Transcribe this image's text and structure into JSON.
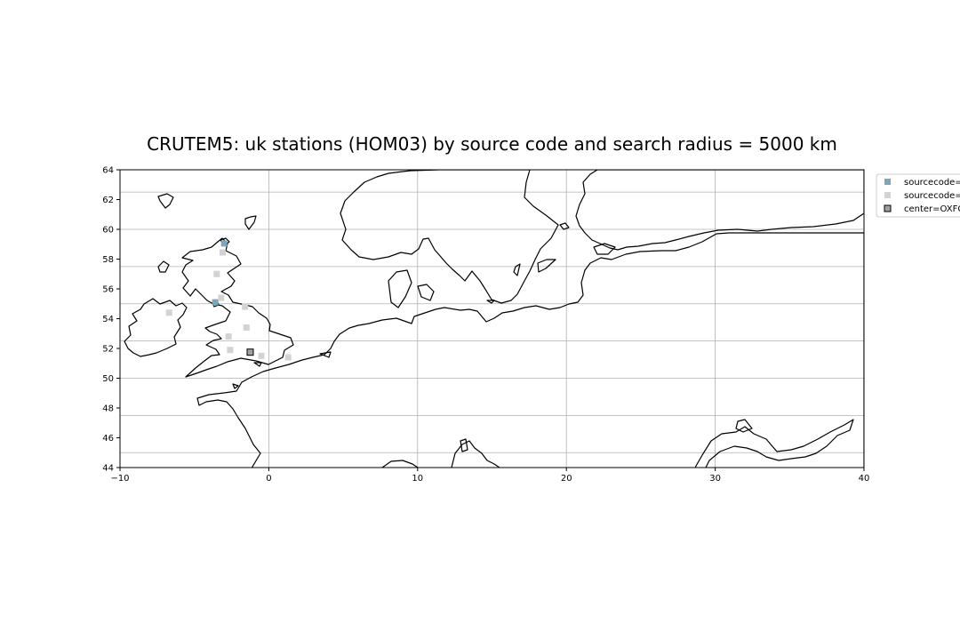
{
  "title": "CRUTEM5: uk stations (HOM03) by source code and search radius = 5000 km",
  "map": {
    "lon_range": [
      -10,
      40
    ],
    "lat_range": [
      44,
      64
    ],
    "x_ticks": [
      -10,
      0,
      10,
      20,
      30,
      40
    ],
    "y_ticks": [
      44,
      46,
      48,
      50,
      52,
      54,
      56,
      58,
      60,
      62,
      64
    ],
    "x_tick_labels": [
      "−10",
      "0",
      "10",
      "20",
      "30",
      "40"
    ],
    "y_tick_labels": [
      "44",
      "46",
      "48",
      "50",
      "52",
      "54",
      "56",
      "58",
      "60",
      "62",
      "64"
    ],
    "grid_lons": [
      0,
      10,
      20,
      30
    ],
    "grid_lats": [
      45,
      47.5,
      50,
      52.5,
      55,
      57.5,
      60,
      62.5
    ],
    "coastline_color": "#000000",
    "grid_color": "#b0b0b0"
  },
  "legend": {
    "placement": "outside-right-top",
    "entries": [
      {
        "label": "sourcecode=",
        "color": "#7ba7bc",
        "edge": "none"
      },
      {
        "label": "sourcecode=",
        "color": "#d3d3d3",
        "edge": "none"
      },
      {
        "label": "center=OXFC",
        "color": "#a0a0a0",
        "edge": "#000000"
      }
    ]
  },
  "stations": [
    {
      "lon": -3.0,
      "lat": 59.05,
      "group": 0
    },
    {
      "lon": -3.6,
      "lat": 55.1,
      "group": 0
    },
    {
      "lon": -3.1,
      "lat": 58.45,
      "group": 1
    },
    {
      "lon": -3.5,
      "lat": 57.0,
      "group": 1
    },
    {
      "lon": -3.2,
      "lat": 55.4,
      "group": 1
    },
    {
      "lon": -1.6,
      "lat": 54.8,
      "group": 1
    },
    {
      "lon": -6.7,
      "lat": 54.4,
      "group": 1
    },
    {
      "lon": -1.5,
      "lat": 53.4,
      "group": 1
    },
    {
      "lon": -2.7,
      "lat": 52.8,
      "group": 1
    },
    {
      "lon": -2.6,
      "lat": 51.9,
      "group": 1
    },
    {
      "lon": -0.5,
      "lat": 51.5,
      "group": 1
    },
    {
      "lon": 1.3,
      "lat": 51.4,
      "group": 1
    }
  ],
  "center_station": {
    "lon": -1.25,
    "lat": 51.75
  }
}
